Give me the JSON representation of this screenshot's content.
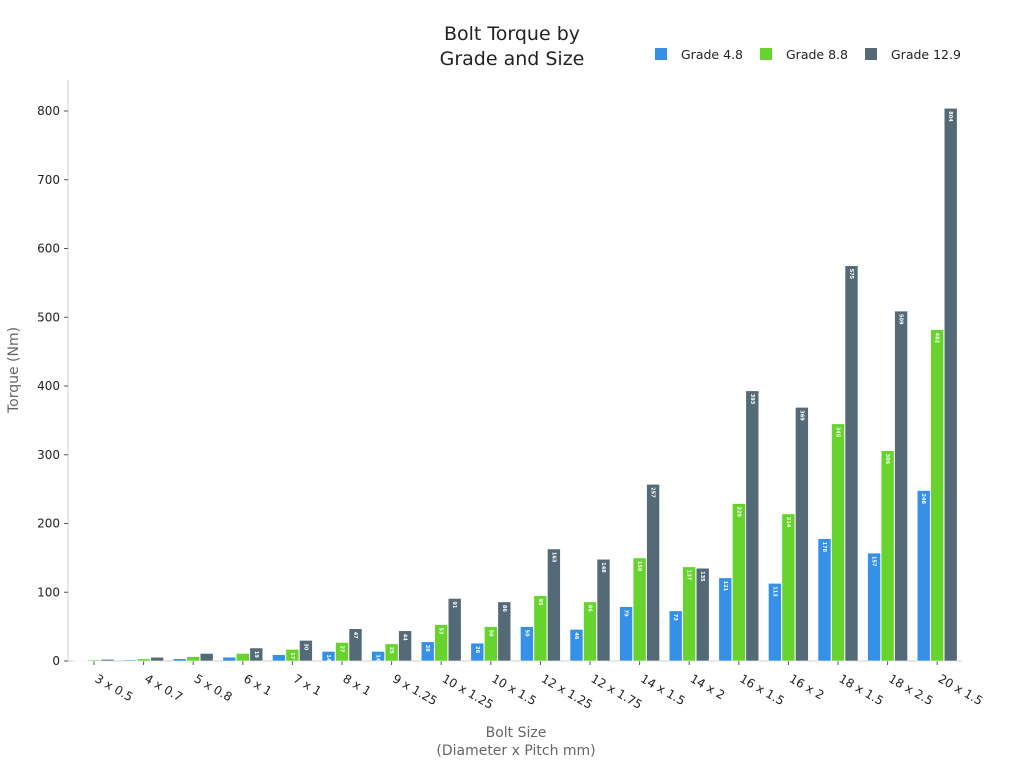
{
  "chart_data": {
    "type": "bar",
    "title_lines": [
      "Bolt Torque by",
      "Grade and Size"
    ],
    "xlabel_lines": [
      "Bolt Size",
      "(Diameter x Pitch mm)"
    ],
    "ylabel": "Torque (Nm)",
    "ylim": [
      0,
      840
    ],
    "yticks": [
      0,
      100,
      200,
      300,
      400,
      500,
      600,
      700,
      800
    ],
    "legend_position": "top-right",
    "grid": false,
    "categories": [
      "3 x 0.5",
      "4 x 0.7",
      "5 x 0.8",
      "6 x 1",
      "7 x 1",
      "8 x 1",
      "9 x 1.25",
      "10 x 1.25",
      "10 x 1.5",
      "12 x 1.25",
      "12 x 1.75",
      "14 x 1.5",
      "14 x 2",
      "16 x 1.5",
      "16 x 2",
      "18 x 1.5",
      "18 x 2.5",
      "20 x 1.5"
    ],
    "series": [
      {
        "name": "Grade 4.8",
        "color": "#3590e8",
        "values": [
          0.8,
          1.6,
          3.3,
          5.6,
          9.2,
          14,
          14,
          28,
          26,
          50,
          46,
          79,
          73,
          121,
          113,
          178,
          157,
          248
        ]
      },
      {
        "name": "Grade 8.8",
        "color": "#66d42c",
        "values": [
          1.6,
          3.2,
          6.5,
          11,
          17,
          27,
          25,
          53,
          50,
          95,
          86,
          150,
          137,
          229,
          214,
          345,
          306,
          482
        ]
      },
      {
        "name": "Grade 12.9",
        "color": "#546b77",
        "values": [
          2.4,
          5.5,
          11,
          19,
          30,
          47,
          44,
          91,
          86,
          163,
          148,
          257,
          135,
          393,
          369,
          575,
          509,
          804
        ]
      }
    ]
  }
}
